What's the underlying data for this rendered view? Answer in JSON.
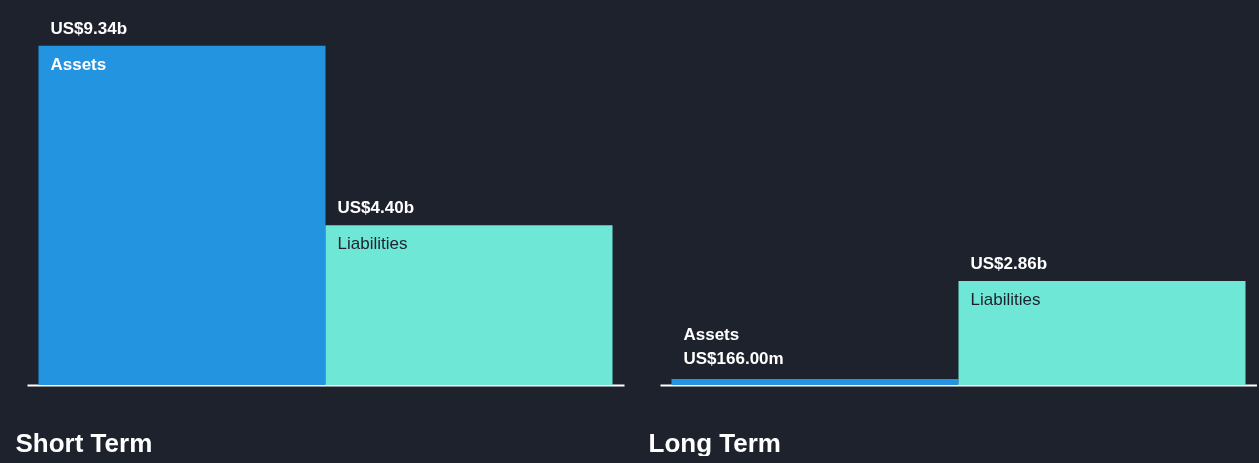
{
  "chart_data": [
    {
      "type": "bar",
      "xlabel": "Short Term",
      "categories": [
        null
      ],
      "series": [
        {
          "name": "Assets",
          "color": "#2394df",
          "values": [
            9340000000
          ],
          "value_labels": [
            "US$9.34b"
          ]
        },
        {
          "name": "Liabilities",
          "color": "#6fe7d6",
          "values": [
            4400000000
          ],
          "value_labels": [
            "US$4.40b"
          ]
        }
      ]
    },
    {
      "type": "bar",
      "xlabel": "Long Term",
      "categories": [
        null
      ],
      "series": [
        {
          "name": "Assets",
          "color": "#2394df",
          "values": [
            166000000
          ],
          "value_labels": [
            "US$166.00m"
          ]
        },
        {
          "name": "Liabilities",
          "color": "#6fe7d6",
          "values": [
            2860000000
          ],
          "value_labels": [
            "US$2.86b"
          ]
        }
      ]
    }
  ]
}
